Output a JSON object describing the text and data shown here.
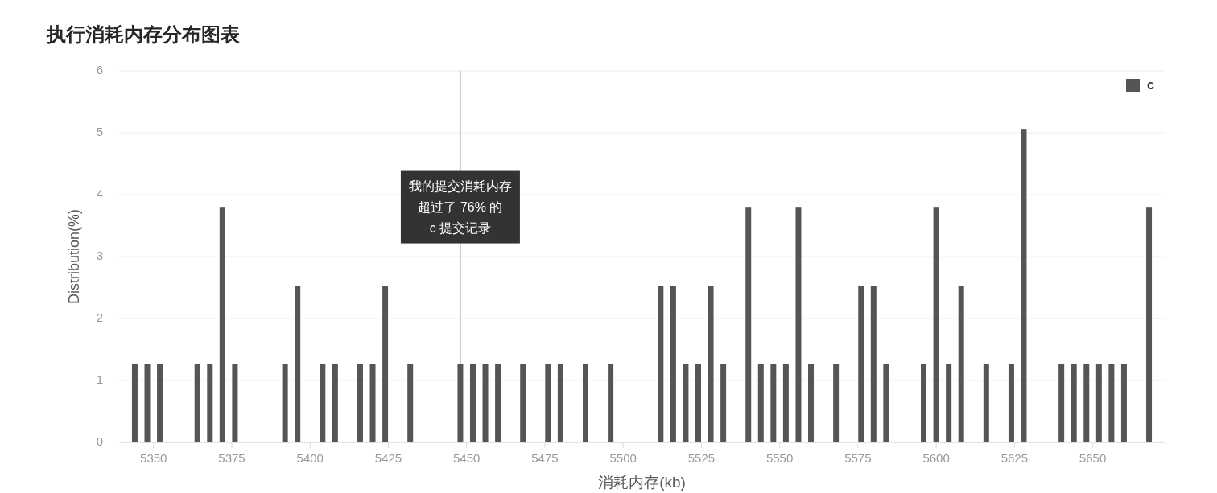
{
  "chart_data": {
    "type": "bar",
    "title": "执行消耗内存分布图表",
    "xlabel": "消耗内存(kb)",
    "ylabel": "Distribution(%)",
    "x": [
      5344,
      5348,
      5352,
      5364,
      5368,
      5372,
      5376,
      5392,
      5396,
      5404,
      5408,
      5416,
      5420,
      5424,
      5432,
      5448,
      5452,
      5456,
      5460,
      5468,
      5476,
      5480,
      5488,
      5496,
      5512,
      5516,
      5520,
      5524,
      5528,
      5532,
      5540,
      5544,
      5548,
      5552,
      5556,
      5560,
      5568,
      5576,
      5580,
      5584,
      5596,
      5600,
      5604,
      5608,
      5616,
      5624,
      5628,
      5640,
      5644,
      5648,
      5652,
      5656,
      5660,
      5668
    ],
    "series": [
      {
        "name": "c",
        "color": "#555555",
        "values": [
          1.26,
          1.26,
          1.26,
          1.26,
          1.26,
          3.79,
          1.26,
          1.26,
          2.53,
          1.26,
          1.26,
          1.26,
          1.26,
          2.53,
          1.26,
          1.26,
          1.26,
          1.26,
          1.26,
          1.26,
          1.26,
          1.26,
          1.26,
          1.26,
          2.53,
          2.53,
          1.26,
          1.26,
          2.53,
          1.26,
          3.79,
          1.26,
          1.26,
          1.26,
          3.79,
          1.26,
          1.26,
          2.53,
          2.53,
          1.26,
          1.26,
          3.79,
          1.26,
          2.53,
          1.26,
          1.26,
          5.05,
          1.26,
          1.26,
          1.26,
          1.26,
          1.26,
          1.26,
          3.79
        ]
      }
    ],
    "xlim": [
      5339,
      5673
    ],
    "ylim": [
      0,
      6
    ],
    "xticks": [
      5350,
      5375,
      5400,
      5425,
      5450,
      5475,
      5500,
      5525,
      5550,
      5575,
      5600,
      5625,
      5650
    ],
    "yticks": [
      0,
      1,
      2,
      3,
      4,
      5,
      6
    ],
    "grid": "y",
    "legend": "top right",
    "ref_lines": [
      {
        "axis": "x",
        "value": 5448,
        "label": "我的提交消耗内存超过了 76% 的\nc 提交记录",
        "color": "#888888"
      }
    ]
  }
}
